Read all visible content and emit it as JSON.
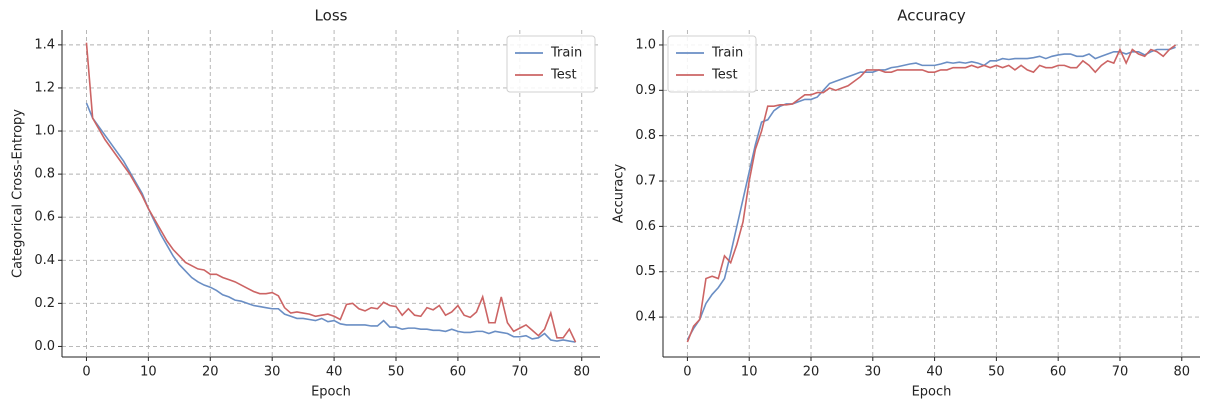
{
  "chart_data": [
    {
      "type": "line",
      "title": "Loss",
      "x_label": "Epoch",
      "y_label": "Categorical Cross-Entropy",
      "x": [
        0,
        1,
        2,
        3,
        4,
        5,
        6,
        7,
        8,
        9,
        10,
        11,
        12,
        13,
        14,
        15,
        16,
        17,
        18,
        19,
        20,
        21,
        22,
        23,
        24,
        25,
        26,
        27,
        28,
        29,
        30,
        31,
        32,
        33,
        34,
        35,
        36,
        37,
        38,
        39,
        40,
        41,
        42,
        43,
        44,
        45,
        46,
        47,
        48,
        49,
        50,
        51,
        52,
        53,
        54,
        55,
        56,
        57,
        58,
        59,
        60,
        61,
        62,
        63,
        64,
        65,
        66,
        67,
        68,
        69,
        70,
        71,
        72,
        73,
        74,
        75,
        76,
        77,
        78,
        79
      ],
      "series": [
        {
          "name": "Train",
          "color": "#6a8ec4",
          "values": [
            1.13,
            1.06,
            1.02,
            0.98,
            0.94,
            0.9,
            0.86,
            0.81,
            0.76,
            0.71,
            0.64,
            0.58,
            0.52,
            0.47,
            0.42,
            0.38,
            0.35,
            0.32,
            0.3,
            0.285,
            0.275,
            0.26,
            0.24,
            0.23,
            0.215,
            0.21,
            0.2,
            0.19,
            0.185,
            0.18,
            0.175,
            0.175,
            0.15,
            0.14,
            0.13,
            0.13,
            0.125,
            0.12,
            0.13,
            0.115,
            0.12,
            0.105,
            0.1,
            0.1,
            0.1,
            0.1,
            0.095,
            0.095,
            0.12,
            0.09,
            0.09,
            0.08,
            0.085,
            0.085,
            0.08,
            0.08,
            0.075,
            0.075,
            0.07,
            0.08,
            0.07,
            0.065,
            0.065,
            0.07,
            0.07,
            0.06,
            0.07,
            0.065,
            0.06,
            0.045,
            0.045,
            0.05,
            0.035,
            0.04,
            0.06,
            0.03,
            0.025,
            0.03,
            0.025,
            0.02
          ]
        },
        {
          "name": "Test",
          "color": "#cc6464",
          "values": [
            1.41,
            1.06,
            1.01,
            0.96,
            0.92,
            0.88,
            0.84,
            0.8,
            0.75,
            0.7,
            0.64,
            0.59,
            0.54,
            0.49,
            0.45,
            0.42,
            0.39,
            0.375,
            0.36,
            0.355,
            0.335,
            0.335,
            0.32,
            0.31,
            0.3,
            0.285,
            0.27,
            0.255,
            0.245,
            0.245,
            0.25,
            0.235,
            0.18,
            0.155,
            0.16,
            0.155,
            0.15,
            0.14,
            0.145,
            0.15,
            0.14,
            0.125,
            0.195,
            0.2,
            0.175,
            0.165,
            0.18,
            0.175,
            0.205,
            0.19,
            0.185,
            0.145,
            0.175,
            0.145,
            0.14,
            0.18,
            0.17,
            0.19,
            0.145,
            0.16,
            0.19,
            0.145,
            0.135,
            0.16,
            0.23,
            0.11,
            0.11,
            0.23,
            0.11,
            0.07,
            0.085,
            0.1,
            0.075,
            0.05,
            0.08,
            0.155,
            0.04,
            0.04,
            0.08,
            0.02
          ]
        }
      ],
      "xlim": [
        -3.95,
        82.95
      ],
      "ylim": [
        -0.049,
        1.469
      ],
      "xticks": [
        0,
        10,
        20,
        30,
        40,
        50,
        60,
        70,
        80
      ],
      "yticks": [
        {
          "value": 0,
          "label": "0.0"
        },
        0.2,
        0.4,
        0.6,
        0.8,
        {
          "value": 1,
          "label": "1.0"
        },
        1.2,
        1.4
      ],
      "grid": true,
      "legend": "upper right"
    },
    {
      "type": "line",
      "title": "Accuracy",
      "x_label": "Epoch",
      "y_label": "Accuracy",
      "x": [
        0,
        1,
        2,
        3,
        4,
        5,
        6,
        7,
        8,
        9,
        10,
        11,
        12,
        13,
        14,
        15,
        16,
        17,
        18,
        19,
        20,
        21,
        22,
        23,
        24,
        25,
        26,
        27,
        28,
        29,
        30,
        31,
        32,
        33,
        34,
        35,
        36,
        37,
        38,
        39,
        40,
        41,
        42,
        43,
        44,
        45,
        46,
        47,
        48,
        49,
        50,
        51,
        52,
        53,
        54,
        55,
        56,
        57,
        58,
        59,
        60,
        61,
        62,
        63,
        64,
        65,
        66,
        67,
        68,
        69,
        70,
        71,
        72,
        73,
        74,
        75,
        76,
        77,
        78,
        79
      ],
      "series": [
        {
          "name": "Train",
          "color": "#6a8ec4",
          "values": [
            0.35,
            0.375,
            0.395,
            0.43,
            0.45,
            0.465,
            0.485,
            0.54,
            0.6,
            0.66,
            0.72,
            0.78,
            0.83,
            0.835,
            0.855,
            0.865,
            0.87,
            0.87,
            0.875,
            0.88,
            0.88,
            0.885,
            0.9,
            0.915,
            0.92,
            0.925,
            0.93,
            0.935,
            0.94,
            0.94,
            0.94,
            0.945,
            0.945,
            0.95,
            0.952,
            0.955,
            0.958,
            0.96,
            0.955,
            0.955,
            0.955,
            0.958,
            0.962,
            0.96,
            0.962,
            0.96,
            0.963,
            0.96,
            0.955,
            0.965,
            0.965,
            0.97,
            0.968,
            0.97,
            0.97,
            0.97,
            0.972,
            0.975,
            0.97,
            0.975,
            0.978,
            0.98,
            0.98,
            0.975,
            0.975,
            0.98,
            0.97,
            0.975,
            0.98,
            0.985,
            0.985,
            0.98,
            0.985,
            0.985,
            0.978,
            0.985,
            0.99,
            0.99,
            0.99,
            0.995
          ]
        },
        {
          "name": "Test",
          "color": "#cc6464",
          "values": [
            0.345,
            0.38,
            0.395,
            0.485,
            0.49,
            0.485,
            0.535,
            0.52,
            0.56,
            0.61,
            0.7,
            0.77,
            0.81,
            0.865,
            0.865,
            0.868,
            0.868,
            0.87,
            0.88,
            0.89,
            0.89,
            0.895,
            0.895,
            0.905,
            0.9,
            0.905,
            0.91,
            0.92,
            0.93,
            0.945,
            0.945,
            0.945,
            0.94,
            0.94,
            0.945,
            0.945,
            0.945,
            0.945,
            0.945,
            0.94,
            0.94,
            0.945,
            0.945,
            0.95,
            0.95,
            0.95,
            0.955,
            0.95,
            0.955,
            0.95,
            0.955,
            0.95,
            0.955,
            0.945,
            0.955,
            0.945,
            0.94,
            0.955,
            0.95,
            0.95,
            0.955,
            0.955,
            0.95,
            0.95,
            0.965,
            0.955,
            0.94,
            0.955,
            0.965,
            0.96,
            0.99,
            0.96,
            0.99,
            0.98,
            0.975,
            0.99,
            0.985,
            0.975,
            0.99,
            1.0
          ]
        }
      ],
      "xlim": [
        -3.95,
        82.95
      ],
      "ylim": [
        0.312,
        1.033
      ],
      "xticks": [
        0,
        10,
        20,
        30,
        40,
        50,
        60,
        70,
        80
      ],
      "yticks": [
        0.4,
        0.5,
        0.6,
        0.7,
        0.8,
        0.9,
        {
          "value": 1,
          "label": "1.0"
        }
      ],
      "grid": true,
      "legend": "upper left"
    }
  ]
}
